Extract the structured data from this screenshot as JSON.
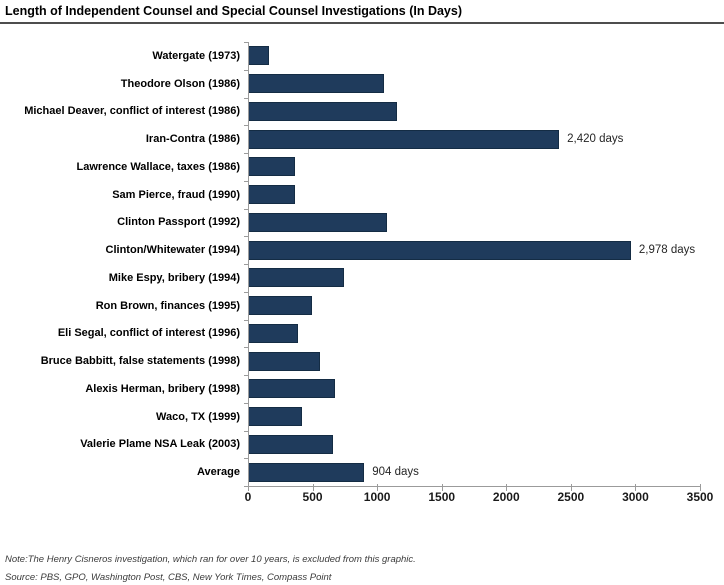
{
  "title": "Length of Independent Counsel and Special Counsel Investigations (In Days)",
  "note": "Note:The Henry Cisneros investigation, which ran for over 10 years, is excluded from this graphic.",
  "source": "Source: PBS, GPO, Washington Post, CBS, New York Times, Compass Point",
  "chart_data": {
    "type": "bar",
    "orientation": "horizontal",
    "title": "Length of Independent Counsel and Special Counsel Investigations (In Days)",
    "categories": [
      "Watergate (1973)",
      "Theodore Olson (1986)",
      "Michael Deaver, conflict of interest (1986)",
      "Iran-Contra (1986)",
      "Lawrence Wallace, taxes (1986)",
      "Sam Pierce, fraud (1990)",
      "Clinton Passport (1992)",
      "Clinton/Whitewater (1994)",
      "Mike Espy, bribery (1994)",
      "Ron Brown, finances (1995)",
      "Eli Segal, conflict of interest (1996)",
      "Bruce Babbitt, false statements (1998)",
      "Alexis Herman, bribery (1998)",
      "Waco, TX (1999)",
      "Valerie Plame NSA Leak (2003)",
      "Average"
    ],
    "values": [
      160,
      1060,
      1160,
      2420,
      365,
      365,
      1080,
      2978,
      750,
      495,
      390,
      560,
      675,
      420,
      660,
      904
    ],
    "annotations": [
      "",
      "",
      "",
      "2,420 days",
      "",
      "",
      "",
      "2,978 days",
      "",
      "",
      "",
      "",
      "",
      "",
      "",
      "904 days"
    ],
    "x_ticks": [
      0,
      500,
      1000,
      1500,
      2000,
      2500,
      3000,
      3500
    ],
    "x_tick_labels": [
      "0",
      "500",
      "1000",
      "1500",
      "2000",
      "2500",
      "3000",
      "3500"
    ],
    "xlim": [
      0,
      3500
    ],
    "xlabel": "",
    "ylabel": "",
    "grid": false,
    "legend": false,
    "bar_color": "#1F3B5C",
    "bar_border_color": "#142C44",
    "axis_color": "#9B9B9B"
  }
}
